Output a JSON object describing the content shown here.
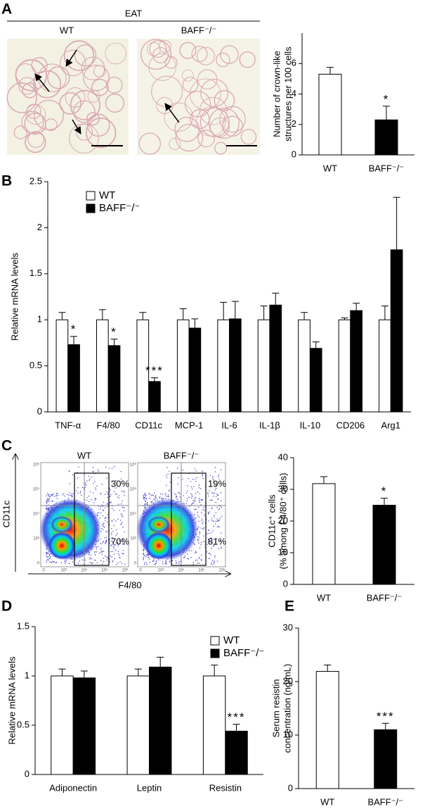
{
  "panel_labels": [
    "A",
    "B",
    "C",
    "D",
    "E"
  ],
  "micrographs": {
    "group": "EAT",
    "titles": [
      "WT",
      "BAFF⁻/⁻"
    ]
  },
  "flow": {
    "titles": [
      "WT",
      "BAFF⁻/⁻"
    ],
    "percentages": [
      [
        "30%",
        "70%"
      ],
      [
        "19%",
        "81%"
      ]
    ],
    "y_label": "CD11c",
    "x_label": "F4/80",
    "tick_labels": [
      "0",
      "10³",
      "10⁴",
      "10⁵",
      "10⁶"
    ]
  },
  "chart_data": [
    {
      "type": "bar",
      "y_label": [
        "Number of crown-like",
        "structures per 100 cells"
      ],
      "categories": [
        "WT",
        "BAFF⁻/⁻"
      ],
      "values": [
        5.3,
        2.3
      ],
      "errors": [
        0.45,
        0.9
      ],
      "colors": [
        "#ffffff",
        "#000000"
      ],
      "annotations": [
        null,
        "*"
      ],
      "ylim": [
        0,
        8
      ],
      "yticks": [
        0,
        2,
        4,
        6
      ]
    },
    {
      "type": "grouped_bar",
      "y_label": [
        "Relative mRNA levels"
      ],
      "categories": [
        "TNF-α",
        "F4/80",
        "CD11c",
        "MCP-1",
        "IL-6",
        "IL-1β",
        "IL-10",
        "CD206",
        "Arg1"
      ],
      "series": [
        {
          "name": "WT",
          "color": "#ffffff",
          "values": [
            1,
            1,
            1,
            1,
            1,
            1,
            1,
            1,
            1
          ],
          "errors": [
            0.08,
            0.11,
            0.08,
            0.12,
            0.19,
            0.15,
            0.08,
            0.02,
            0.15
          ]
        },
        {
          "name": "BAFF⁻/⁻",
          "color": "#000000",
          "values": [
            0.73,
            0.72,
            0.33,
            0.91,
            1.01,
            1.16,
            0.69,
            1.1,
            1.76
          ],
          "errors": [
            0.09,
            0.07,
            0.04,
            0.1,
            0.19,
            0.13,
            0.07,
            0.08,
            0.57
          ],
          "annotations": [
            "*",
            "*",
            "***",
            null,
            null,
            null,
            null,
            null,
            null
          ]
        }
      ],
      "legend": "upper left",
      "ylim": [
        0,
        2.5
      ],
      "yticks": [
        0,
        0.5,
        1,
        1.5,
        2,
        2.5
      ]
    },
    {
      "type": "bar",
      "y_label": [
        "CD11c⁺ cells",
        "(% among F4/80⁺ cells)"
      ],
      "categories": [
        "WT",
        "BAFF⁻/⁻"
      ],
      "values": [
        31.8,
        25
      ],
      "errors": [
        2.2,
        2.2
      ],
      "colors": [
        "#ffffff",
        "#000000"
      ],
      "annotations": [
        null,
        "*"
      ],
      "ylim": [
        0,
        40
      ],
      "yticks": [
        0,
        10,
        20,
        30,
        40
      ]
    },
    {
      "type": "grouped_bar",
      "y_label": [
        "Relative mRNA levels"
      ],
      "categories": [
        "Adiponectin",
        "Leptin",
        "Resistin"
      ],
      "series": [
        {
          "name": "WT",
          "color": "#ffffff",
          "values": [
            1,
            1,
            1
          ],
          "errors": [
            0.07,
            0.07,
            0.11
          ]
        },
        {
          "name": "BAFF⁻/⁻",
          "color": "#000000",
          "values": [
            0.98,
            1.09,
            0.44
          ],
          "errors": [
            0.07,
            0.1,
            0.07
          ],
          "annotations": [
            null,
            null,
            "***"
          ]
        }
      ],
      "legend": "upper right",
      "ylim": [
        0,
        1.5
      ],
      "yticks": [
        0,
        0.5,
        1,
        1.5
      ]
    },
    {
      "type": "bar",
      "y_label": [
        "Serum resistin",
        "concentration (ng/mL)"
      ],
      "categories": [
        "WT",
        "BAFF⁻/⁻"
      ],
      "values": [
        21.9,
        11
      ],
      "errors": [
        1.2,
        1.2
      ],
      "colors": [
        "#ffffff",
        "#000000"
      ],
      "annotations": [
        null,
        "***"
      ],
      "ylim": [
        0,
        30
      ],
      "yticks": [
        0,
        10,
        20,
        30
      ]
    }
  ]
}
